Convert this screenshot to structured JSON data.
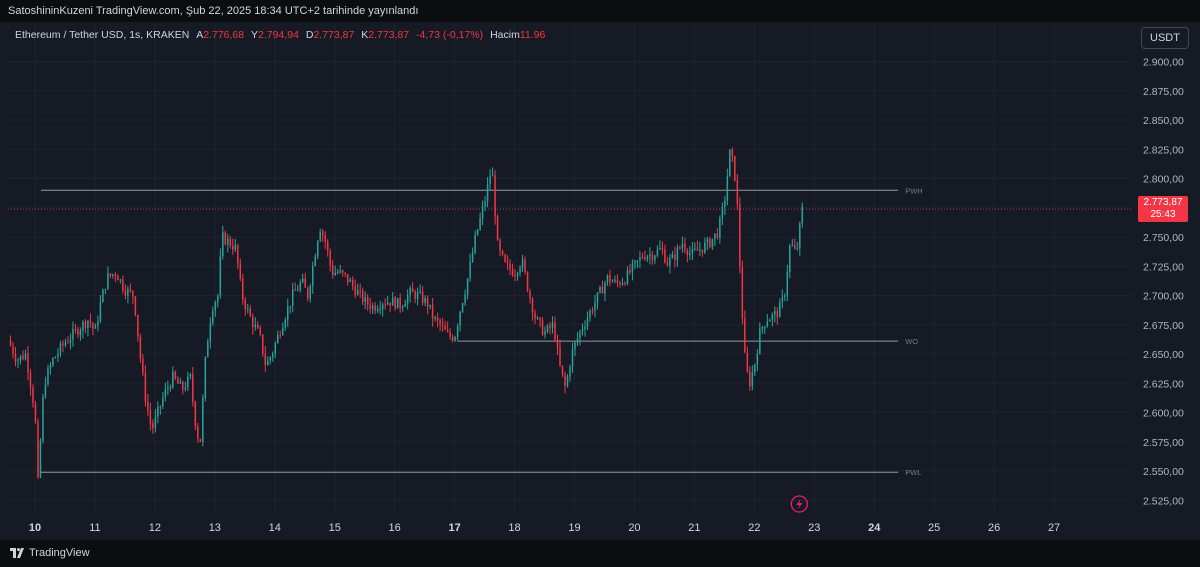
{
  "header": {
    "published": "SatoshininKuzeni TradingView.com, Şub 22, 2025 18:34 UTC+2 tarihinde yayınlandı"
  },
  "legend": {
    "symbol": "Ethereum / Tether USD, 1s, KRAKEN",
    "open_label": "A",
    "open": "2.776,68",
    "high_label": "Y",
    "high": "2.794,94",
    "low_label": "D",
    "low": "2.773,87",
    "close_label": "K",
    "close": "2.773,87",
    "change": "-4,73 (-0,17%)",
    "volume_label": "Hacim",
    "volume": "11.96"
  },
  "currency": "USDT",
  "current_price": {
    "price": "2.773,87",
    "countdown": "25:43"
  },
  "footer": {
    "brand": "TradingView"
  },
  "colors": {
    "up": "#26a69a",
    "down": "#f23645",
    "background": "#161a25",
    "grid": "#1f2330",
    "level": "#9598a1"
  },
  "chart_data": {
    "type": "candlestick",
    "ylim": [
      2515,
      2915
    ],
    "y_ticks": [
      {
        "v": 2525,
        "label": "2.525,00"
      },
      {
        "v": 2550,
        "label": "2.550,00"
      },
      {
        "v": 2575,
        "label": "2.575,00"
      },
      {
        "v": 2600,
        "label": "2.600,00"
      },
      {
        "v": 2625,
        "label": "2.625,00"
      },
      {
        "v": 2650,
        "label": "2.650,00"
      },
      {
        "v": 2675,
        "label": "2.675,00"
      },
      {
        "v": 2700,
        "label": "2.700,00"
      },
      {
        "v": 2725,
        "label": "2.725,00"
      },
      {
        "v": 2750,
        "label": "2.750,00"
      },
      {
        "v": 2775,
        "label": "2.775,00"
      },
      {
        "v": 2800,
        "label": "2.800,00"
      },
      {
        "v": 2825,
        "label": "2.825,00"
      },
      {
        "v": 2850,
        "label": "2.850,00"
      },
      {
        "v": 2875,
        "label": "2.875,00"
      },
      {
        "v": 2900,
        "label": "2.900,00"
      }
    ],
    "x_ticks": [
      {
        "day": 10,
        "label": "10",
        "bold": true
      },
      {
        "day": 11,
        "label": "11"
      },
      {
        "day": 12,
        "label": "12"
      },
      {
        "day": 13,
        "label": "13"
      },
      {
        "day": 14,
        "label": "14"
      },
      {
        "day": 15,
        "label": "15"
      },
      {
        "day": 16,
        "label": "16"
      },
      {
        "day": 17,
        "label": "17",
        "bold": true
      },
      {
        "day": 18,
        "label": "18"
      },
      {
        "day": 19,
        "label": "19"
      },
      {
        "day": 20,
        "label": "20"
      },
      {
        "day": 21,
        "label": "21"
      },
      {
        "day": 22,
        "label": "22"
      },
      {
        "day": 23,
        "label": "23"
      },
      {
        "day": 24,
        "label": "24",
        "bold": true
      },
      {
        "day": 25,
        "label": "25"
      },
      {
        "day": 26,
        "label": "26"
      },
      {
        "day": 27,
        "label": "27"
      }
    ],
    "x_range": [
      9.55,
      28.3
    ],
    "levels": [
      {
        "name": "PWH",
        "price": 2790,
        "from_day": 10.1,
        "to_day": 24.4
      },
      {
        "name": "WO",
        "price": 2661,
        "from_day": 17.05,
        "to_day": 24.4
      },
      {
        "name": "PWL",
        "price": 2549,
        "from_day": 10.1,
        "to_day": 24.4
      }
    ],
    "current_price_value": 2773.87,
    "path_points": [
      [
        9.55,
        2662
      ],
      [
        9.7,
        2645
      ],
      [
        9.85,
        2650
      ],
      [
        10.0,
        2600
      ],
      [
        10.05,
        2540
      ],
      [
        10.15,
        2625
      ],
      [
        10.3,
        2645
      ],
      [
        10.5,
        2660
      ],
      [
        10.7,
        2670
      ],
      [
        10.9,
        2680
      ],
      [
        11.0,
        2668
      ],
      [
        11.1,
        2695
      ],
      [
        11.2,
        2715
      ],
      [
        11.35,
        2720
      ],
      [
        11.5,
        2705
      ],
      [
        11.65,
        2700
      ],
      [
        11.75,
        2650
      ],
      [
        11.85,
        2610
      ],
      [
        11.95,
        2585
      ],
      [
        12.05,
        2600
      ],
      [
        12.15,
        2615
      ],
      [
        12.3,
        2630
      ],
      [
        12.45,
        2620
      ],
      [
        12.6,
        2630
      ],
      [
        12.65,
        2600
      ],
      [
        12.75,
        2570
      ],
      [
        12.85,
        2650
      ],
      [
        12.95,
        2690
      ],
      [
        13.05,
        2700
      ],
      [
        13.12,
        2750
      ],
      [
        13.25,
        2745
      ],
      [
        13.35,
        2740
      ],
      [
        13.45,
        2700
      ],
      [
        13.6,
        2680
      ],
      [
        13.75,
        2665
      ],
      [
        13.85,
        2640
      ],
      [
        13.95,
        2650
      ],
      [
        14.05,
        2665
      ],
      [
        14.15,
        2680
      ],
      [
        14.3,
        2700
      ],
      [
        14.45,
        2712
      ],
      [
        14.55,
        2700
      ],
      [
        14.65,
        2730
      ],
      [
        14.75,
        2760
      ],
      [
        14.85,
        2745
      ],
      [
        14.95,
        2720
      ],
      [
        15.05,
        2720
      ],
      [
        15.2,
        2715
      ],
      [
        15.35,
        2705
      ],
      [
        15.5,
        2695
      ],
      [
        15.65,
        2690
      ],
      [
        15.8,
        2695
      ],
      [
        15.95,
        2695
      ],
      [
        16.1,
        2692
      ],
      [
        16.25,
        2702
      ],
      [
        16.4,
        2700
      ],
      [
        16.55,
        2693
      ],
      [
        16.65,
        2680
      ],
      [
        16.75,
        2675
      ],
      [
        16.9,
        2665
      ],
      [
        17.0,
        2665
      ],
      [
        17.1,
        2690
      ],
      [
        17.2,
        2710
      ],
      [
        17.35,
        2750
      ],
      [
        17.5,
        2780
      ],
      [
        17.62,
        2810
      ],
      [
        17.72,
        2740
      ],
      [
        17.85,
        2725
      ],
      [
        18.0,
        2720
      ],
      [
        18.12,
        2730
      ],
      [
        18.25,
        2700
      ],
      [
        18.35,
        2680
      ],
      [
        18.5,
        2668
      ],
      [
        18.65,
        2675
      ],
      [
        18.75,
        2640
      ],
      [
        18.85,
        2620
      ],
      [
        18.95,
        2650
      ],
      [
        19.1,
        2670
      ],
      [
        19.25,
        2685
      ],
      [
        19.4,
        2700
      ],
      [
        19.55,
        2715
      ],
      [
        19.7,
        2710
      ],
      [
        19.85,
        2715
      ],
      [
        20.0,
        2725
      ],
      [
        20.15,
        2735
      ],
      [
        20.3,
        2735
      ],
      [
        20.45,
        2740
      ],
      [
        20.55,
        2728
      ],
      [
        20.65,
        2732
      ],
      [
        20.8,
        2745
      ],
      [
        20.95,
        2735
      ],
      [
        21.1,
        2740
      ],
      [
        21.25,
        2745
      ],
      [
        21.4,
        2755
      ],
      [
        21.5,
        2780
      ],
      [
        21.6,
        2825
      ],
      [
        21.7,
        2795
      ],
      [
        21.78,
        2700
      ],
      [
        21.85,
        2640
      ],
      [
        21.92,
        2625
      ],
      [
        22.0,
        2640
      ],
      [
        22.1,
        2670
      ],
      [
        22.2,
        2680
      ],
      [
        22.3,
        2682
      ],
      [
        22.4,
        2686
      ],
      [
        22.5,
        2700
      ],
      [
        22.6,
        2745
      ],
      [
        22.7,
        2735
      ],
      [
        22.8,
        2774
      ]
    ]
  }
}
